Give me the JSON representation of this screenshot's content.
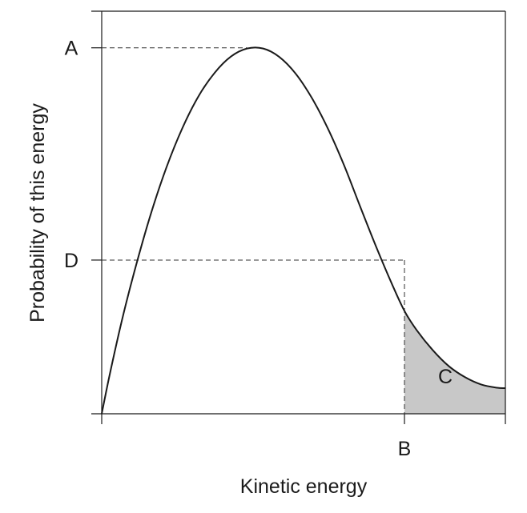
{
  "chart_data": {
    "type": "line",
    "xlabel": "Kinetic energy",
    "ylabel": "Probability of this energy",
    "curve": {
      "x": [
        0,
        0.02,
        0.05,
        0.08,
        0.12,
        0.16,
        0.2,
        0.24,
        0.28,
        0.32,
        0.36,
        0.4,
        0.44,
        0.48,
        0.52,
        0.56,
        0.6,
        0.64,
        0.68,
        0.72,
        0.75,
        0.78,
        0.82,
        0.86,
        0.9,
        0.94,
        0.98,
        1.0
      ],
      "y": [
        0,
        0.108,
        0.255,
        0.385,
        0.54,
        0.672,
        0.781,
        0.868,
        0.932,
        0.976,
        0.998,
        0.998,
        0.975,
        0.93,
        0.864,
        0.78,
        0.68,
        0.567,
        0.456,
        0.352,
        0.281,
        0.229,
        0.174,
        0.13,
        0.1,
        0.08,
        0.071,
        0.07
      ]
    },
    "markers": {
      "A": {
        "axis": "y",
        "value": 1.0
      },
      "D": {
        "axis": "y",
        "value": 0.42
      },
      "B": {
        "axis": "x",
        "value": 0.75
      }
    },
    "shaded_region": {
      "label": "C",
      "from_x": 0.75,
      "to_x": 1.0,
      "color": "#c8c8c8"
    },
    "labels": {
      "A": "A",
      "B": "B",
      "C": "C",
      "D": "D"
    },
    "xlim": [
      0,
      1.0
    ],
    "ylim": [
      0,
      1.1
    ],
    "grid": false
  },
  "colors": {
    "curve": "#1a1a1a",
    "axis": "#1a1a1a",
    "dashed": "#333333",
    "shade": "#c8c8c8"
  }
}
